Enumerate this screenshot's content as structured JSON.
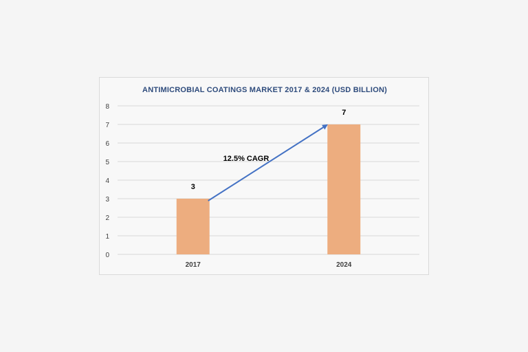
{
  "chart_data": {
    "type": "bar",
    "title": "ANTIMICROBIAL COATINGS MARKET 2017 & 2024 (USD BILLION)",
    "categories": [
      "2017",
      "2024"
    ],
    "values": [
      3,
      7
    ],
    "data_labels": [
      "3",
      "7"
    ],
    "ylim": [
      0,
      8
    ],
    "yticks": [
      "0",
      "1",
      "2",
      "3",
      "4",
      "5",
      "6",
      "7",
      "8"
    ],
    "grid": true,
    "legend": "none",
    "annotation": "12.5% CAGR",
    "colors": {
      "bar": "#edad7f",
      "arrow": "#4472c4",
      "title": "#2e4b7c",
      "grid": "#d9d9d9"
    }
  }
}
